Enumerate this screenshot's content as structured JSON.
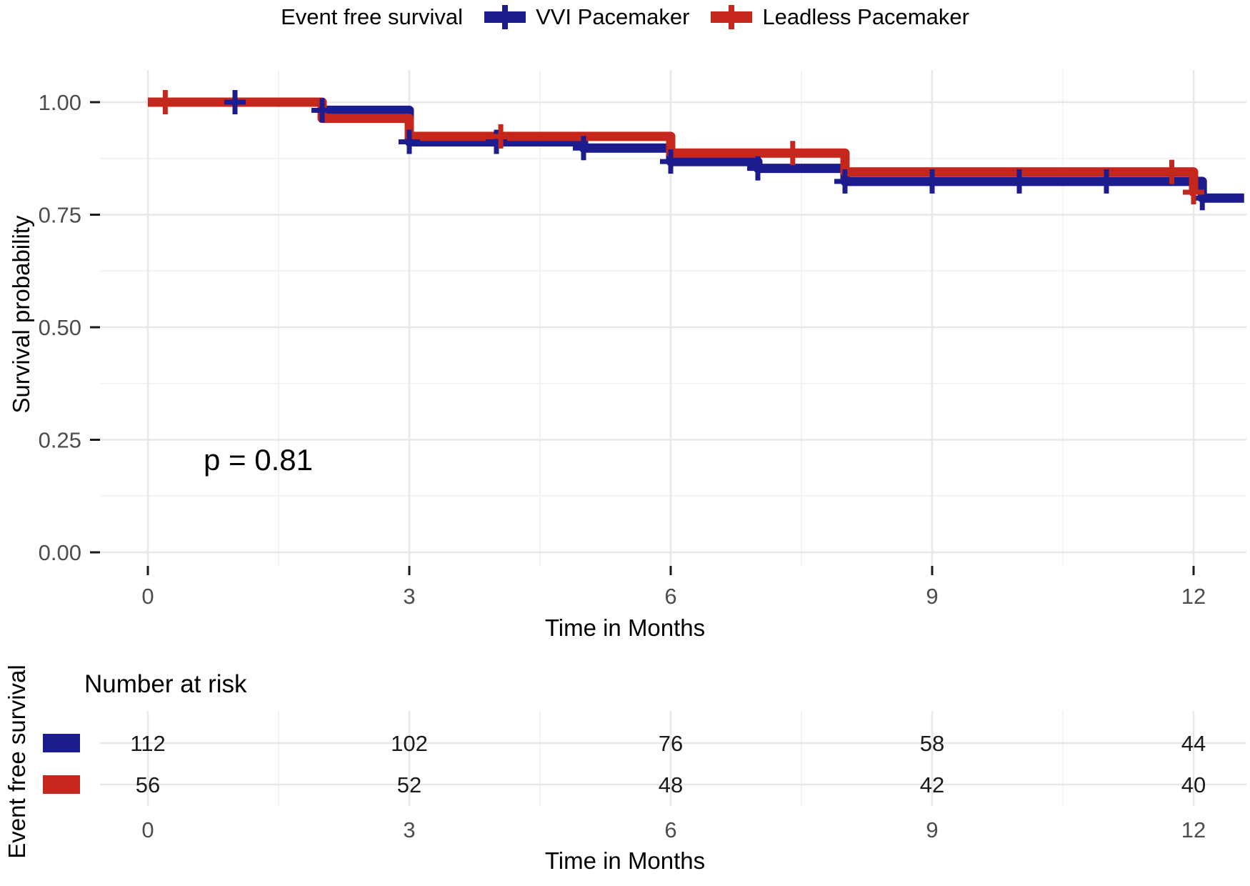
{
  "figure": {
    "legend": {
      "title": "Event free survival",
      "items": [
        {
          "label": "VVI Pacemaker",
          "color": "#1c1c8f"
        },
        {
          "label": "Leadless Pacemaker",
          "color": "#c5271d"
        }
      ]
    },
    "p_value_text": "p = 0.81",
    "axes": {
      "x_title": "Time in Months",
      "y_title": "Survival probability",
      "x_tick_labels": [
        "0",
        "3",
        "6",
        "9",
        "12"
      ],
      "y_tick_labels": [
        "0.00",
        "0.25",
        "0.50",
        "0.75",
        "1.00"
      ],
      "tick_label_color": "#4d4d4d",
      "grid_major_color": "#e8e8e8",
      "grid_minor_color": "#f3f3f3"
    },
    "risk_table": {
      "title": "Number at risk",
      "group_axis_label": "Event free survival",
      "x_title": "Time in Months",
      "x_tick_labels": [
        "0",
        "3",
        "6",
        "9",
        "12"
      ],
      "rows": [
        {
          "name": "VVI Pacemaker",
          "color": "#1c1c8f",
          "counts": [
            "112",
            "102",
            "76",
            "58",
            "44"
          ]
        },
        {
          "name": "Leadless Pacemaker",
          "color": "#c5271d",
          "counts": [
            "56",
            "52",
            "48",
            "42",
            "40"
          ]
        }
      ]
    }
  },
  "chart_data": {
    "type": "line",
    "subtype": "kaplan-meier-step-survival",
    "title": "Event free survival",
    "xlabel": "Time in Months",
    "ylabel": "Survival probability",
    "xlim": [
      -0.5,
      12.6
    ],
    "ylim": [
      0,
      1.05
    ],
    "x_ticks": [
      0,
      3,
      6,
      9,
      12
    ],
    "y_ticks": [
      0,
      0.25,
      0.5,
      0.75,
      1
    ],
    "x_minor_ticks": [
      1.5,
      4.5,
      7.5,
      10.5
    ],
    "y_minor_ticks": [
      0.125,
      0.375,
      0.625,
      0.875
    ],
    "grid": "major+minor",
    "legend_position": "top",
    "annotations": [
      {
        "text": "p = 0.81",
        "x": 0.65,
        "y": 0.19
      }
    ],
    "series": [
      {
        "name": "VVI Pacemaker",
        "color": "#1c1c8f",
        "n_at_risk_times": [
          0,
          3,
          6,
          9,
          12
        ],
        "n_at_risk": [
          112,
          102,
          76,
          58,
          44
        ],
        "steps": [
          [
            0,
            1.0
          ],
          [
            2,
            0.982
          ],
          [
            3,
            0.912
          ],
          [
            5,
            0.898
          ],
          [
            6,
            0.868
          ],
          [
            7,
            0.853
          ],
          [
            8,
            0.824
          ],
          [
            12.1,
            0.787
          ]
        ],
        "end_time": 12.58,
        "censor_marks": [
          [
            1,
            1.0
          ],
          [
            2,
            0.982
          ],
          [
            3,
            0.912
          ],
          [
            4,
            0.912
          ],
          [
            5,
            0.898
          ],
          [
            6,
            0.868
          ],
          [
            7,
            0.853
          ],
          [
            8,
            0.824
          ],
          [
            9,
            0.824
          ],
          [
            10,
            0.824
          ],
          [
            11,
            0.824
          ],
          [
            12.1,
            0.787
          ]
        ]
      },
      {
        "name": "Leadless Pacemaker",
        "color": "#c5271d",
        "n_at_risk_times": [
          0,
          3,
          6,
          9,
          12
        ],
        "n_at_risk": [
          56,
          52,
          48,
          42,
          40
        ],
        "steps": [
          [
            0,
            1.0
          ],
          [
            2,
            0.964
          ],
          [
            3,
            0.924
          ],
          [
            6,
            0.887
          ],
          [
            8,
            0.845
          ],
          [
            12,
            0.8
          ]
        ],
        "end_time": 12.02,
        "censor_marks": [
          [
            0.2,
            1.0
          ],
          [
            4.05,
            0.924
          ],
          [
            7.4,
            0.887
          ],
          [
            11.75,
            0.845
          ],
          [
            12,
            0.8
          ]
        ]
      }
    ]
  }
}
